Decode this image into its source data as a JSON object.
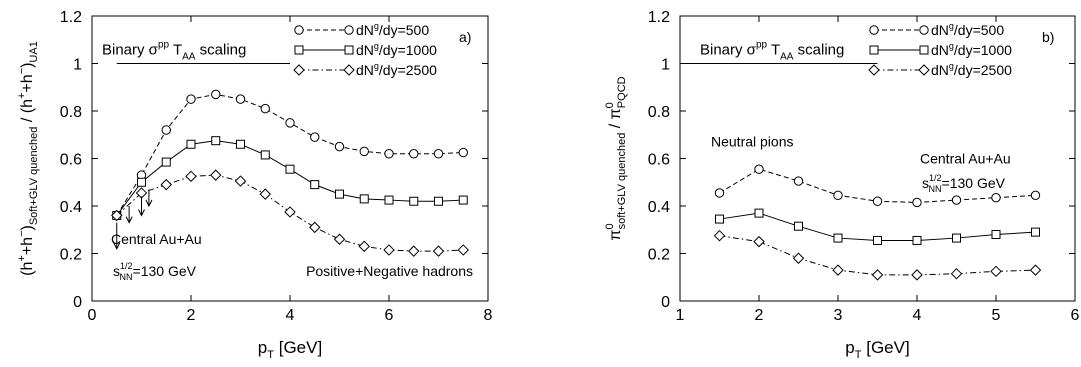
{
  "chart_data": [
    {
      "type": "line",
      "panel": "a)",
      "xlabel": {
        "main": "p",
        "sub": "T",
        "rest": " [GeV]"
      },
      "ylabel": {
        "text": "(h⁺+h⁻)Soft+GLV quenched / (h⁺+h⁻)UA1"
      },
      "xlim": [
        0,
        8
      ],
      "ylim": [
        0,
        1.2
      ],
      "xticks": [
        "0",
        "2",
        "4",
        "6",
        "8"
      ],
      "yticks": [
        "0",
        "0.2",
        "0.4",
        "0.6",
        "0.8",
        "1",
        "1.2"
      ],
      "reference_line": {
        "y": 1,
        "x_range": [
          0.5,
          4.0
        ],
        "label": "Binary σ^pp T_AA scaling"
      },
      "legend_position": "top-right",
      "series": [
        {
          "name": "dNᵍ/dy=500",
          "marker": "circle",
          "dash": "dashed",
          "x": [
            0.5,
            1.0,
            1.5,
            2.0,
            2.5,
            3.0,
            3.5,
            4.0,
            4.5,
            5.0,
            5.5,
            6.0,
            6.5,
            7.0,
            7.5
          ],
          "y": [
            0.36,
            0.53,
            0.72,
            0.85,
            0.87,
            0.85,
            0.81,
            0.75,
            0.69,
            0.65,
            0.63,
            0.62,
            0.62,
            0.62,
            0.625
          ]
        },
        {
          "name": "dNᵍ/dy=1000",
          "marker": "square",
          "dash": "solid",
          "x": [
            0.5,
            1.0,
            1.5,
            2.0,
            2.5,
            3.0,
            3.5,
            4.0,
            4.5,
            5.0,
            5.5,
            6.0,
            6.5,
            7.0,
            7.5
          ],
          "y": [
            0.36,
            0.5,
            0.585,
            0.66,
            0.675,
            0.66,
            0.615,
            0.555,
            0.49,
            0.45,
            0.43,
            0.425,
            0.42,
            0.42,
            0.425
          ]
        },
        {
          "name": "dNᵍ/dy=2500",
          "marker": "diamond",
          "dash": "dashdot",
          "x": [
            0.5,
            1.0,
            1.5,
            2.0,
            2.5,
            3.0,
            3.5,
            4.0,
            4.5,
            5.0,
            5.5,
            6.0,
            6.5,
            7.0,
            7.5
          ],
          "y": [
            0.36,
            0.455,
            0.49,
            0.525,
            0.53,
            0.505,
            0.45,
            0.375,
            0.31,
            0.26,
            0.23,
            0.215,
            0.21,
            0.21,
            0.215
          ]
        }
      ],
      "arrows": [
        {
          "x": 0.5,
          "y_from": 0.33,
          "y_to": 0.22
        },
        {
          "x": 0.75,
          "y_from": 0.4,
          "y_to": 0.33
        },
        {
          "x": 1.0,
          "y_from": 0.44,
          "y_to": 0.36
        },
        {
          "x": 1.15,
          "y_from": 0.47,
          "y_to": 0.4
        }
      ],
      "annotations": [
        {
          "id": "system",
          "text": "Central Au+Au"
        },
        {
          "id": "energy",
          "text": "s^1/2_NN=130 GeV"
        },
        {
          "id": "species",
          "text": "Positive+Negative hadrons"
        }
      ]
    },
    {
      "type": "line",
      "panel": "b)",
      "xlabel": {
        "main": "p",
        "sub": "T",
        "rest": " [GeV]"
      },
      "ylabel": {
        "text": "π⁰soft+GLV quenched / π⁰PQCD"
      },
      "xlim": [
        1,
        6
      ],
      "ylim": [
        0,
        1.2
      ],
      "xticks": [
        "1",
        "2",
        "3",
        "4",
        "5",
        "6"
      ],
      "yticks": [
        "0",
        "0.2",
        "0.4",
        "0.6",
        "0.8",
        "1",
        "1.2"
      ],
      "reference_line": {
        "y": 1,
        "x_range": [
          1.0,
          3.5
        ],
        "label": "Binary σ^pp T_AA scaling"
      },
      "legend_position": "top-right",
      "series": [
        {
          "name": "dNᵍ/dy=500",
          "marker": "circle",
          "dash": "dashed",
          "x": [
            1.5,
            2.0,
            2.5,
            3.0,
            3.5,
            4.0,
            4.5,
            5.0,
            5.5
          ],
          "y": [
            0.455,
            0.555,
            0.505,
            0.445,
            0.42,
            0.415,
            0.425,
            0.435,
            0.445
          ]
        },
        {
          "name": "dNᵍ/dy=1000",
          "marker": "square",
          "dash": "solid",
          "x": [
            1.5,
            2.0,
            2.5,
            3.0,
            3.5,
            4.0,
            4.5,
            5.0,
            5.5
          ],
          "y": [
            0.345,
            0.37,
            0.315,
            0.265,
            0.255,
            0.255,
            0.265,
            0.28,
            0.29
          ]
        },
        {
          "name": "dNᵍ/dy=2500",
          "marker": "diamond",
          "dash": "dashdot",
          "x": [
            1.5,
            2.0,
            2.5,
            3.0,
            3.5,
            4.0,
            4.5,
            5.0,
            5.5
          ],
          "y": [
            0.275,
            0.25,
            0.18,
            0.13,
            0.11,
            0.11,
            0.115,
            0.125,
            0.13
          ]
        }
      ],
      "arrows": [],
      "annotations": [
        {
          "id": "species",
          "text": "Neutral pions"
        },
        {
          "id": "system",
          "text": "Central Au+Au"
        },
        {
          "id": "energy",
          "text": "s^1/2_NN=130 GeV"
        }
      ]
    }
  ]
}
